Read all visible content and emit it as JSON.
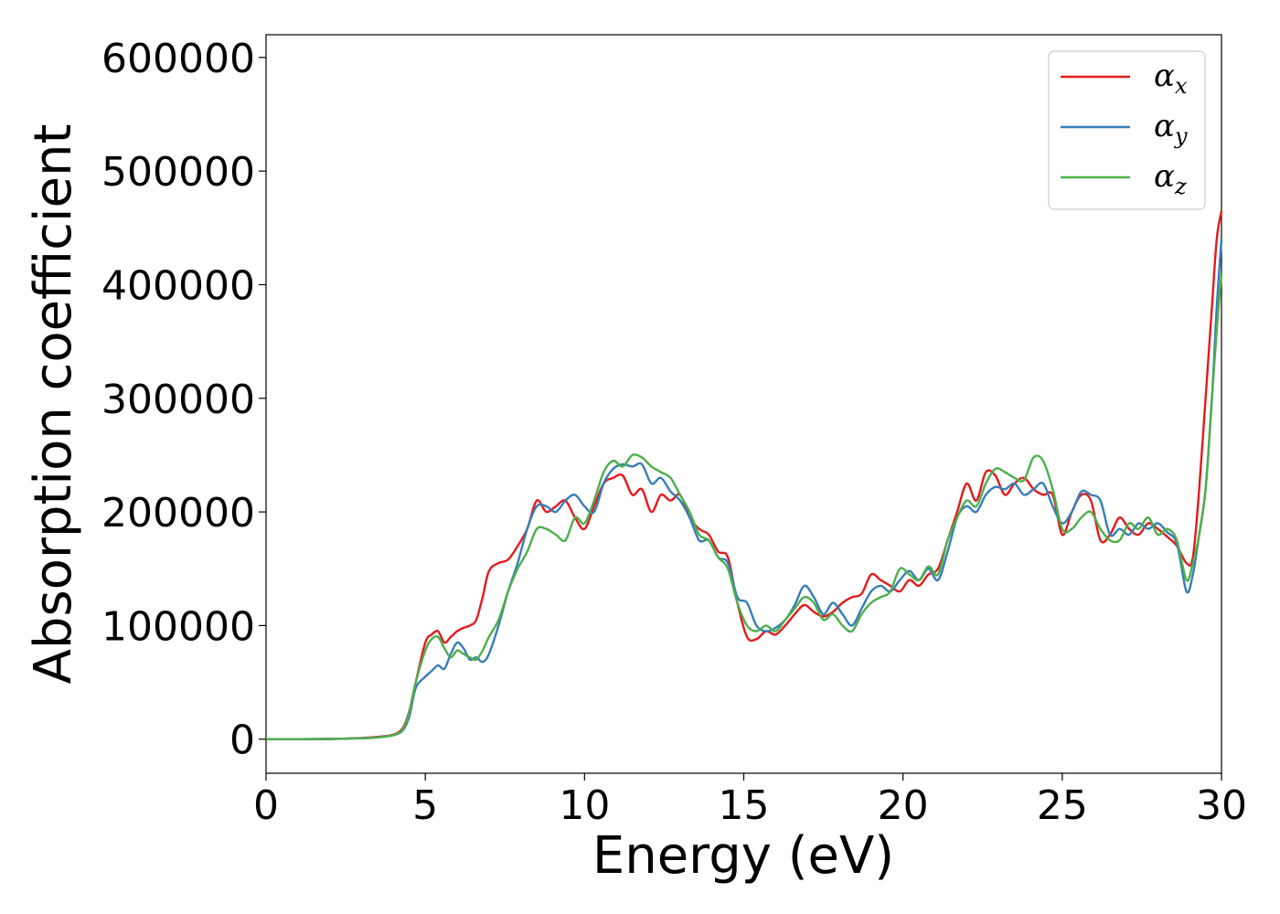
{
  "chart_data": {
    "type": "line",
    "title": "",
    "xlabel": "Energy (eV)",
    "ylabel": "Absorption coefficient",
    "xlim": [
      0,
      30
    ],
    "ylim": [
      -30000,
      620000
    ],
    "xticks": [
      0,
      5,
      10,
      15,
      20,
      25,
      30
    ],
    "yticks": [
      0,
      100000,
      200000,
      300000,
      400000,
      500000,
      600000
    ],
    "grid": false,
    "legend_position": "top-right",
    "series": [
      {
        "name": "αx",
        "symbol": "α",
        "subscript": "x",
        "color": "#e41a1c",
        "x": [
          0,
          1,
          2,
          3,
          3.5,
          4,
          4.3,
          4.5,
          4.7,
          5.0,
          5.2,
          5.4,
          5.6,
          5.8,
          6.0,
          6.2,
          6.4,
          6.6,
          6.8,
          7.0,
          7.3,
          7.6,
          7.9,
          8.2,
          8.5,
          8.8,
          9.1,
          9.4,
          9.7,
          10.0,
          10.3,
          10.6,
          10.9,
          11.2,
          11.5,
          11.8,
          12.1,
          12.4,
          12.7,
          13.0,
          13.3,
          13.6,
          13.9,
          14.2,
          14.5,
          14.8,
          15.1,
          15.4,
          15.7,
          16.0,
          16.3,
          16.6,
          16.9,
          17.2,
          17.5,
          17.8,
          18.1,
          18.4,
          18.7,
          19.0,
          19.3,
          19.6,
          19.9,
          20.2,
          20.5,
          20.8,
          21.1,
          21.4,
          21.7,
          22.0,
          22.3,
          22.6,
          22.9,
          23.2,
          23.5,
          23.8,
          24.1,
          24.4,
          24.7,
          25.0,
          25.3,
          25.6,
          25.9,
          26.2,
          26.5,
          26.8,
          27.1,
          27.4,
          27.7,
          28.0,
          28.3,
          28.6,
          28.9,
          29.1,
          29.3,
          29.5,
          29.7,
          29.85,
          30.0
        ],
        "values": [
          0,
          0,
          200,
          1000,
          2000,
          4000,
          10000,
          25000,
          50000,
          85000,
          92000,
          95000,
          85000,
          90000,
          95000,
          98000,
          100000,
          105000,
          125000,
          148000,
          155000,
          158000,
          170000,
          185000,
          210000,
          200000,
          205000,
          210000,
          195000,
          185000,
          205000,
          225000,
          230000,
          232000,
          215000,
          220000,
          200000,
          215000,
          210000,
          215000,
          195000,
          185000,
          180000,
          165000,
          160000,
          120000,
          90000,
          88000,
          95000,
          92000,
          100000,
          110000,
          118000,
          112000,
          108000,
          112000,
          120000,
          125000,
          128000,
          145000,
          140000,
          135000,
          130000,
          140000,
          135000,
          145000,
          150000,
          175000,
          200000,
          225000,
          210000,
          235000,
          232000,
          215000,
          225000,
          230000,
          220000,
          215000,
          215000,
          180000,
          200000,
          215000,
          210000,
          175000,
          180000,
          195000,
          185000,
          180000,
          190000,
          185000,
          178000,
          170000,
          155000,
          160000,
          220000,
          300000,
          380000,
          440000,
          465000
        ]
      },
      {
        "name": "αy",
        "symbol": "α",
        "subscript": "y",
        "color": "#377eb8",
        "x": [
          0,
          1,
          2,
          3,
          3.5,
          4,
          4.3,
          4.5,
          4.7,
          5.0,
          5.2,
          5.4,
          5.6,
          5.8,
          6.0,
          6.2,
          6.4,
          6.6,
          6.8,
          7.0,
          7.3,
          7.6,
          7.9,
          8.2,
          8.5,
          8.8,
          9.1,
          9.4,
          9.7,
          10.0,
          10.3,
          10.6,
          10.9,
          11.2,
          11.5,
          11.8,
          12.1,
          12.4,
          12.7,
          13.0,
          13.3,
          13.6,
          13.9,
          14.2,
          14.5,
          14.8,
          15.1,
          15.4,
          15.7,
          16.0,
          16.3,
          16.6,
          16.9,
          17.2,
          17.5,
          17.8,
          18.1,
          18.4,
          18.7,
          19.0,
          19.3,
          19.6,
          19.9,
          20.2,
          20.5,
          20.8,
          21.1,
          21.4,
          21.7,
          22.0,
          22.3,
          22.6,
          22.9,
          23.2,
          23.5,
          23.8,
          24.1,
          24.4,
          24.7,
          25.0,
          25.3,
          25.6,
          25.9,
          26.2,
          26.5,
          26.8,
          27.1,
          27.4,
          27.7,
          28.0,
          28.3,
          28.6,
          28.9,
          29.1,
          29.3,
          29.5,
          29.7,
          29.85,
          30.0
        ],
        "values": [
          0,
          0,
          200,
          800,
          1500,
          3500,
          8000,
          20000,
          45000,
          55000,
          60000,
          65000,
          62000,
          75000,
          85000,
          80000,
          70000,
          72000,
          68000,
          75000,
          100000,
          130000,
          155000,
          185000,
          205000,
          205000,
          200000,
          210000,
          215000,
          205000,
          200000,
          225000,
          238000,
          242000,
          240000,
          242000,
          225000,
          230000,
          218000,
          210000,
          195000,
          175000,
          175000,
          160000,
          155000,
          125000,
          120000,
          100000,
          95000,
          98000,
          105000,
          118000,
          135000,
          125000,
          110000,
          120000,
          110000,
          100000,
          115000,
          130000,
          135000,
          130000,
          140000,
          148000,
          140000,
          150000,
          140000,
          165000,
          195000,
          205000,
          200000,
          215000,
          222000,
          220000,
          225000,
          215000,
          220000,
          225000,
          205000,
          190000,
          200000,
          218000,
          215000,
          210000,
          180000,
          185000,
          180000,
          190000,
          185000,
          190000,
          182000,
          172000,
          130000,
          145000,
          180000,
          220000,
          300000,
          380000,
          440000
        ]
      },
      {
        "name": "αz",
        "symbol": "α",
        "subscript": "z",
        "color": "#4daf4a",
        "x": [
          0,
          1,
          2,
          3,
          3.5,
          4,
          4.3,
          4.5,
          4.7,
          5.0,
          5.2,
          5.4,
          5.6,
          5.8,
          6.0,
          6.2,
          6.4,
          6.6,
          6.8,
          7.0,
          7.3,
          7.6,
          7.9,
          8.2,
          8.5,
          8.8,
          9.1,
          9.4,
          9.7,
          10.0,
          10.3,
          10.6,
          10.9,
          11.2,
          11.5,
          11.8,
          12.1,
          12.4,
          12.7,
          13.0,
          13.3,
          13.6,
          13.9,
          14.2,
          14.5,
          14.8,
          15.1,
          15.4,
          15.7,
          16.0,
          16.3,
          16.6,
          16.9,
          17.2,
          17.5,
          17.8,
          18.1,
          18.4,
          18.7,
          19.0,
          19.3,
          19.6,
          19.9,
          20.2,
          20.5,
          20.8,
          21.1,
          21.4,
          21.7,
          22.0,
          22.3,
          22.6,
          22.9,
          23.2,
          23.5,
          23.8,
          24.1,
          24.4,
          24.7,
          25.0,
          25.3,
          25.6,
          25.9,
          26.2,
          26.5,
          26.8,
          27.1,
          27.4,
          27.7,
          28.0,
          28.3,
          28.6,
          28.9,
          29.1,
          29.3,
          29.5,
          29.7,
          29.85,
          30.0
        ],
        "values": [
          0,
          0,
          200,
          800,
          1500,
          3500,
          9000,
          24000,
          50000,
          78000,
          88000,
          90000,
          80000,
          72000,
          78000,
          75000,
          72000,
          70000,
          78000,
          90000,
          105000,
          130000,
          150000,
          165000,
          185000,
          185000,
          180000,
          175000,
          195000,
          190000,
          210000,
          235000,
          245000,
          240000,
          250000,
          248000,
          240000,
          235000,
          230000,
          215000,
          200000,
          180000,
          175000,
          160000,
          150000,
          120000,
          100000,
          95000,
          100000,
          95000,
          105000,
          115000,
          125000,
          120000,
          105000,
          110000,
          100000,
          95000,
          110000,
          120000,
          125000,
          130000,
          150000,
          145000,
          140000,
          152000,
          145000,
          175000,
          195000,
          210000,
          205000,
          225000,
          238000,
          235000,
          230000,
          228000,
          248000,
          245000,
          220000,
          185000,
          185000,
          195000,
          200000,
          185000,
          175000,
          175000,
          190000,
          185000,
          195000,
          180000,
          185000,
          175000,
          140000,
          155000,
          180000,
          220000,
          300000,
          360000,
          410000
        ]
      }
    ]
  }
}
